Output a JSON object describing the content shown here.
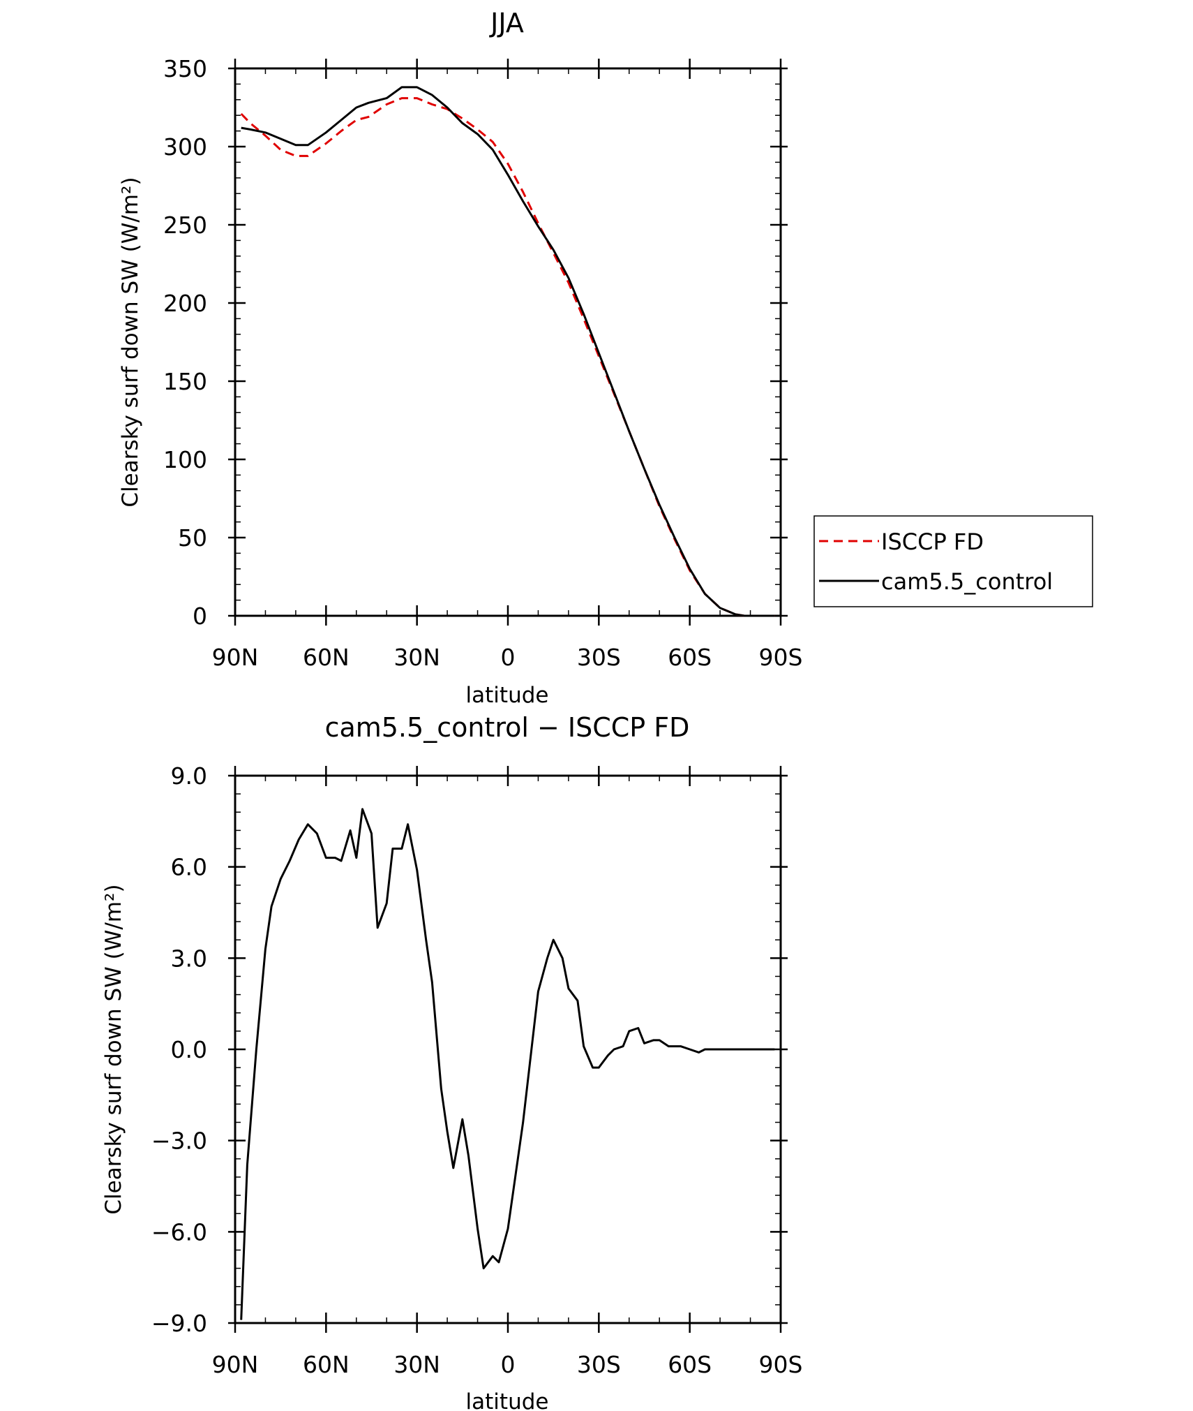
{
  "chart_data": [
    {
      "type": "line",
      "title": "JJA",
      "xlabel": "latitude",
      "ylabel": "Clearsky surf down SW (W/m²)",
      "xlim": [
        90,
        -90
      ],
      "ylim": [
        0,
        350
      ],
      "x_ticks": [
        90,
        60,
        30,
        0,
        -30,
        -60,
        -90
      ],
      "x_tick_labels": [
        "90N",
        "60N",
        "30N",
        "0",
        "30S",
        "60S",
        "90S"
      ],
      "y_ticks": [
        0,
        50,
        100,
        150,
        200,
        250,
        300,
        350
      ],
      "y_tick_labels": [
        "0",
        "50",
        "100",
        "150",
        "200",
        "250",
        "300",
        "350"
      ],
      "legend_position": "right",
      "series": [
        {
          "name": "ISCCP FD",
          "color": "#e00000",
          "dash": "dashed",
          "x": [
            88,
            85,
            80,
            75,
            70,
            66,
            60,
            55,
            50,
            46,
            40,
            35,
            30,
            25,
            20,
            15,
            10,
            5,
            0,
            -5,
            -10,
            -15,
            -20,
            -25,
            -30,
            -35,
            -40,
            -45,
            -50,
            -55,
            -60,
            -65,
            -70,
            -75,
            -78,
            -80,
            -85,
            -88
          ],
          "values": [
            321,
            315,
            307,
            298,
            294,
            294,
            302,
            310,
            317,
            319,
            327,
            331,
            331,
            327,
            324,
            318,
            311,
            303,
            289,
            271,
            251,
            232,
            213,
            190,
            166,
            142,
            118,
            94,
            70,
            49,
            29,
            14,
            5,
            1,
            0,
            0,
            0,
            0
          ]
        },
        {
          "name": "cam5.5_control",
          "color": "#000000",
          "dash": "solid",
          "x": [
            88,
            85,
            80,
            75,
            70,
            66,
            60,
            55,
            50,
            46,
            40,
            35,
            30,
            25,
            20,
            15,
            10,
            5,
            0,
            -5,
            -10,
            -15,
            -20,
            -25,
            -30,
            -35,
            -40,
            -45,
            -50,
            -55,
            -60,
            -65,
            -70,
            -75,
            -78,
            -80,
            -85,
            -88
          ],
          "values": [
            312,
            311,
            309,
            305,
            301,
            301,
            309,
            317,
            325,
            328,
            331,
            338,
            338,
            333,
            325,
            315,
            308,
            298,
            282,
            265,
            249,
            234,
            216,
            193,
            168,
            143,
            118,
            94,
            71,
            50,
            30,
            14,
            5,
            1,
            0,
            0,
            0,
            0
          ]
        }
      ]
    },
    {
      "type": "line",
      "title": "cam5.5_control − ISCCP FD",
      "xlabel": "latitude",
      "ylabel": "Clearsky surf down SW (W/m²)",
      "xlim": [
        90,
        -90
      ],
      "ylim": [
        -9.0,
        9.0
      ],
      "x_ticks": [
        90,
        60,
        30,
        0,
        -30,
        -60,
        -90
      ],
      "x_tick_labels": [
        "90N",
        "60N",
        "30N",
        "0",
        "30S",
        "60S",
        "90S"
      ],
      "y_ticks": [
        -9.0,
        -6.0,
        -3.0,
        0.0,
        3.0,
        6.0,
        9.0
      ],
      "y_tick_labels": [
        "−9.0",
        "−6.0",
        "−3.0",
        "0.0",
        "3.0",
        "6.0",
        "9.0"
      ],
      "series": [
        {
          "color": "#000000",
          "dash": "solid",
          "x": [
            88,
            86,
            83,
            80,
            78,
            75,
            72,
            69,
            66,
            63,
            60,
            57,
            55,
            52,
            50,
            48,
            45,
            43,
            40,
            38,
            35,
            33,
            30,
            27,
            25,
            22,
            20,
            18,
            15,
            13,
            10,
            8,
            5,
            3,
            0,
            -2,
            -5,
            -8,
            -10,
            -13,
            -15,
            -18,
            -20,
            -23,
            -25,
            -28,
            -30,
            -33,
            -35,
            -38,
            -40,
            -43,
            -45,
            -48,
            -50,
            -53,
            -55,
            -57,
            -60,
            -63,
            -65,
            -68,
            -70,
            -73,
            -75,
            -78,
            -80,
            -83,
            -85,
            -88
          ],
          "values": [
            -8.9,
            -3.8,
            0,
            3.3,
            4.7,
            5.6,
            6.2,
            6.9,
            7.4,
            7.1,
            6.3,
            6.3,
            6.2,
            7.2,
            6.3,
            7.9,
            7.1,
            4.0,
            4.8,
            6.6,
            6.6,
            7.4,
            5.9,
            3.6,
            2.2,
            -1.3,
            -2.7,
            -3.9,
            -2.3,
            -3.5,
            -5.9,
            -7.2,
            -6.8,
            -7.0,
            -5.9,
            -4.5,
            -2.4,
            0.2,
            1.9,
            3.0,
            3.6,
            3.0,
            2.0,
            1.6,
            0.1,
            -0.6,
            -0.6,
            -0.2,
            0.0,
            0.1,
            0.6,
            0.7,
            0.2,
            0.3,
            0.3,
            0.1,
            0.1,
            0.1,
            0.0,
            -0.1,
            0.0,
            0.0,
            0.0,
            0.0,
            0.0,
            0.0,
            0.0,
            0.0,
            0.0,
            0.0
          ]
        }
      ]
    }
  ]
}
